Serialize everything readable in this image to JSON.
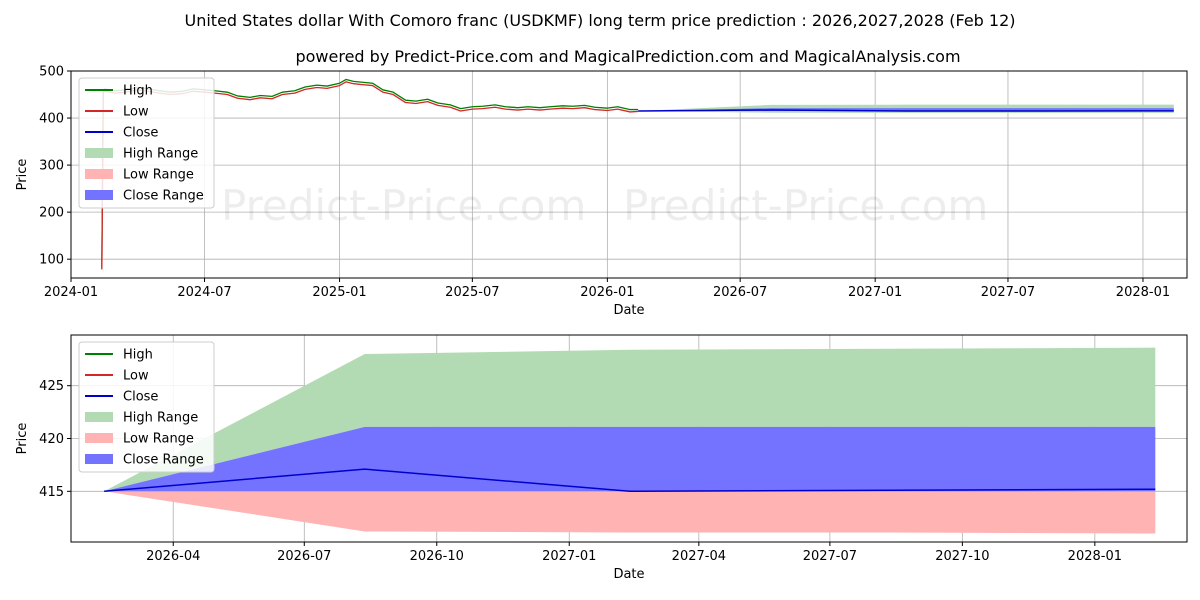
{
  "title": "United States dollar With Comoro franc (USDKMF) long term price prediction : 2026,2027,2028 (Feb 12)",
  "subtitle": "powered by Predict-Price.com and MagicalPrediction.com and MagicalAnalysis.com",
  "watermark": "Predict-Price.com",
  "colors": {
    "high": "#008000",
    "low": "#d62728",
    "close": "#0000cc",
    "high_range": "#b3dbb3",
    "low_range": "#ffb3b3",
    "close_range": "#7373ff"
  },
  "legend": [
    "High",
    "Low",
    "Close",
    "High Range",
    "Low Range",
    "Close Range"
  ],
  "chart_data": [
    {
      "type": "line",
      "name": "top",
      "xlabel": "Date",
      "ylabel": "Price",
      "xlim": [
        "2024-01-01",
        "2028-03-01"
      ],
      "ylim": [
        60,
        500
      ],
      "xticks": [
        "2024-01",
        "2024-07",
        "2025-01",
        "2025-07",
        "2026-01",
        "2026-07",
        "2027-01",
        "2027-07",
        "2028-01"
      ],
      "yticks": [
        100,
        200,
        300,
        400,
        500
      ],
      "legend_position": "upper-left",
      "history_dates": [
        "2024-02-12",
        "2024-02-14",
        "2024-02-16",
        "2024-03-01",
        "2024-03-15",
        "2024-04-01",
        "2024-04-15",
        "2024-05-01",
        "2024-05-15",
        "2024-06-01",
        "2024-06-15",
        "2024-07-01",
        "2024-07-15",
        "2024-08-01",
        "2024-08-15",
        "2024-09-01",
        "2024-09-15",
        "2024-10-01",
        "2024-10-15",
        "2024-11-01",
        "2024-11-15",
        "2024-12-01",
        "2024-12-15",
        "2025-01-01",
        "2025-01-10",
        "2025-01-20",
        "2025-02-01",
        "2025-02-15",
        "2025-03-01",
        "2025-03-15",
        "2025-04-01",
        "2025-04-15",
        "2025-05-01",
        "2025-05-15",
        "2025-06-01",
        "2025-06-15",
        "2025-07-01",
        "2025-07-15",
        "2025-08-01",
        "2025-08-15",
        "2025-09-01",
        "2025-09-15",
        "2025-10-01",
        "2025-10-15",
        "2025-11-01",
        "2025-11-15",
        "2025-12-01",
        "2025-12-15",
        "2026-01-01",
        "2026-01-15",
        "2026-02-01",
        "2026-02-12"
      ],
      "history_high": [
        82,
        460,
        462,
        458,
        460,
        465,
        462,
        458,
        455,
        457,
        462,
        460,
        458,
        455,
        447,
        444,
        448,
        446,
        455,
        458,
        466,
        470,
        468,
        474,
        482,
        478,
        476,
        474,
        460,
        455,
        438,
        436,
        440,
        432,
        428,
        420,
        424,
        425,
        428,
        424,
        422,
        424,
        422,
        424,
        426,
        425,
        427,
        423,
        421,
        424,
        418,
        418
      ],
      "history_low": [
        78,
        455,
        457,
        453,
        455,
        460,
        457,
        453,
        450,
        452,
        457,
        455,
        453,
        450,
        442,
        439,
        443,
        441,
        450,
        453,
        461,
        465,
        463,
        469,
        477,
        473,
        471,
        469,
        455,
        450,
        433,
        431,
        435,
        427,
        423,
        415,
        419,
        420,
        423,
        419,
        417,
        419,
        417,
        419,
        421,
        420,
        422,
        418,
        416,
        419,
        413,
        414
      ],
      "forecast_dates": [
        "2026-02-12",
        "2026-08-12",
        "2027-02-12",
        "2027-08-12",
        "2028-02-12"
      ],
      "forecast_high": [
        415,
        428,
        428.4,
        428.5,
        428.6
      ],
      "forecast_low": [
        415,
        411.2,
        411.1,
        411.1,
        411.0
      ],
      "forecast_close": [
        415,
        417.1,
        415.0,
        415.1,
        415.2
      ],
      "close_range_upper": [
        415,
        421.1,
        421.1,
        421.1,
        421.1
      ],
      "close_range_lower": [
        415,
        415.0,
        415.0,
        415.0,
        415.0
      ]
    },
    {
      "type": "area",
      "name": "bottom",
      "xlabel": "Date",
      "ylabel": "Price",
      "xlim": [
        "2026-01-20",
        "2028-03-05"
      ],
      "ylim": [
        410.2,
        429.8
      ],
      "xticks": [
        "2026-04",
        "2026-07",
        "2026-10",
        "2027-01",
        "2027-04",
        "2027-07",
        "2027-10",
        "2028-01"
      ],
      "yticks": [
        415,
        420,
        425
      ],
      "legend_position": "upper-left",
      "forecast_dates": [
        "2026-02-12",
        "2026-08-12",
        "2027-02-12",
        "2027-08-12",
        "2028-02-12"
      ],
      "high_range_upper": [
        415,
        428,
        428.4,
        428.5,
        428.6
      ],
      "high_range_lower": [
        415,
        421.1,
        421.1,
        421.1,
        421.1
      ],
      "close_range_upper": [
        415,
        421.1,
        421.1,
        421.1,
        421.1
      ],
      "close_range_lower": [
        415,
        415.0,
        415.0,
        415.0,
        415.0
      ],
      "low_range_upper": [
        415,
        415.0,
        415.0,
        415.0,
        415.0
      ],
      "low_range_lower": [
        415,
        411.2,
        411.1,
        411.1,
        411.0
      ],
      "close": [
        415,
        417.1,
        415.0,
        415.1,
        415.2
      ]
    }
  ]
}
